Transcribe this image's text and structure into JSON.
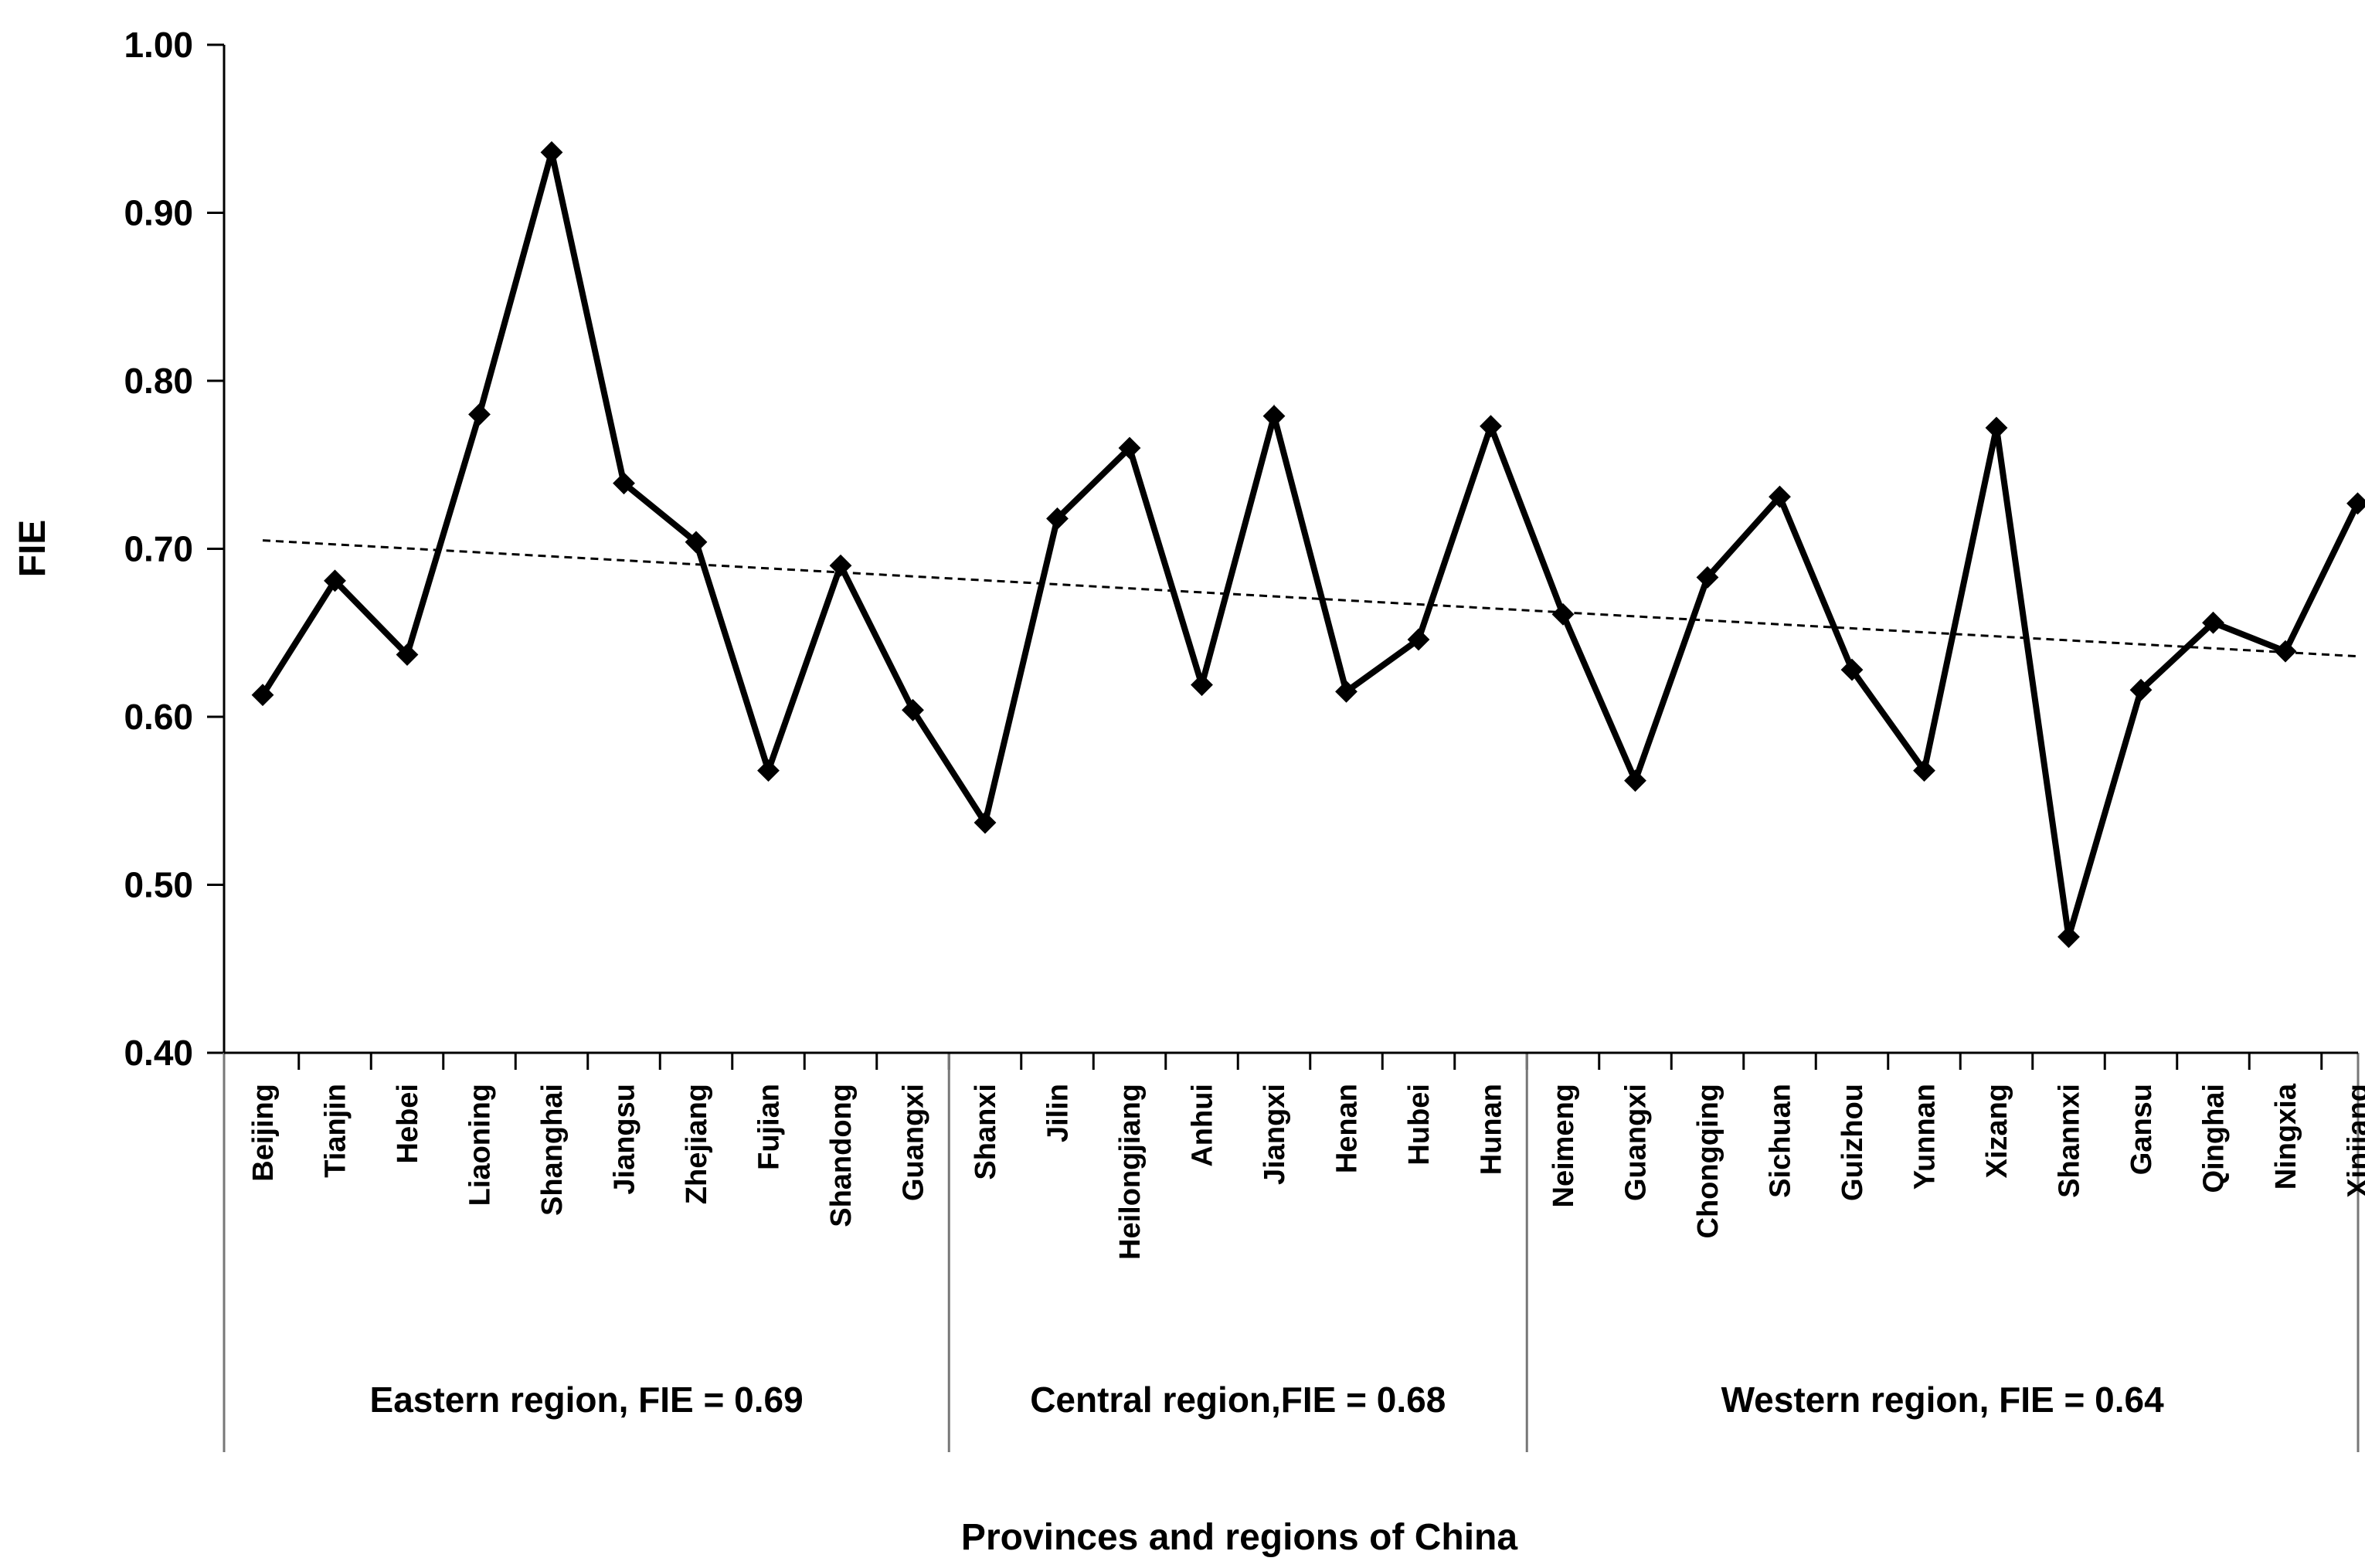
{
  "chart_data": {
    "type": "line",
    "title": "",
    "xlabel": "Provinces and regions of China",
    "ylabel": "FIE",
    "ylim": [
      0.4,
      1.0
    ],
    "yticks": [
      "0.40",
      "0.50",
      "0.60",
      "0.70",
      "0.80",
      "0.90",
      "1.00"
    ],
    "categories": [
      "Beijing",
      "Tianjin",
      "Hebei",
      "Liaoning",
      "Shanghai",
      "Jiangsu",
      "Zhejiang",
      "Fujian",
      "Shandong",
      "Guangxi",
      "Shanxi",
      "Jilin",
      "Heilongjiang",
      "Anhui",
      "Jiangxi",
      "Henan",
      "Hubei",
      "Hunan",
      "Neimeng",
      "Guangxi",
      "Chongqing",
      "Sichuan",
      "Guizhou",
      "Yunnan",
      "Xizang",
      "Shannxi",
      "Gansu",
      "Qinghai",
      "Ningxia",
      "Xinjiang"
    ],
    "series": [
      {
        "name": "FIE",
        "marker": "diamond",
        "values": [
          0.613,
          0.681,
          0.637,
          0.78,
          0.936,
          0.739,
          0.704,
          0.568,
          0.69,
          0.604,
          0.537,
          0.718,
          0.76,
          0.619,
          0.779,
          0.615,
          0.646,
          0.773,
          0.661,
          0.562,
          0.683,
          0.731,
          0.628,
          0.568,
          0.772,
          0.469,
          0.616,
          0.656,
          0.639,
          0.727
        ]
      }
    ],
    "trendline": {
      "style": "dashed",
      "start": 0.705,
      "end": 0.636
    },
    "groups": [
      {
        "label": "Eastern region, FIE = 0.69",
        "start": 0,
        "end": 9
      },
      {
        "label": "Central region,FIE = 0.68",
        "start": 10,
        "end": 17
      },
      {
        "label": "Western region, FIE = 0.64",
        "start": 18,
        "end": 29
      }
    ]
  }
}
